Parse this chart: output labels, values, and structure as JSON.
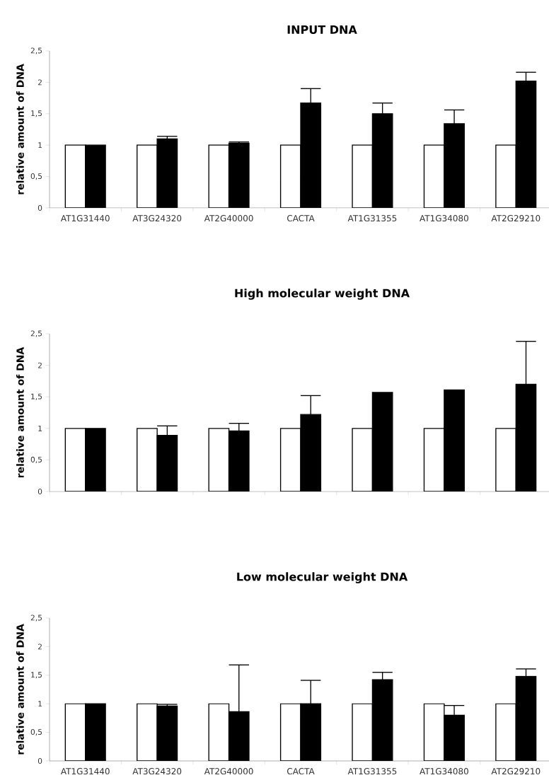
{
  "chart_data": [
    {
      "type": "bar",
      "title": "INPUT DNA",
      "ylabel": "relative amount of DNA",
      "categories": [
        "AT1G31440",
        "AT3G24320",
        "AT2G40000",
        "CACTA",
        "AT1G31355",
        "AT1G34080",
        "AT2G29210"
      ],
      "series": [
        {
          "color": "#ffffff",
          "values": [
            1,
            1,
            1,
            1,
            1,
            1,
            1
          ]
        },
        {
          "color": "#000000",
          "values": [
            1,
            1.1,
            1.03,
            1.67,
            1.5,
            1.34,
            2.02
          ],
          "errors": [
            null,
            [
              1.1,
              1.14
            ],
            [
              1.03,
              1.05
            ],
            [
              1.67,
              1.9
            ],
            [
              1.5,
              1.67
            ],
            [
              1.34,
              1.56
            ],
            [
              2.02,
              2.16
            ]
          ]
        }
      ],
      "ylim": [
        0,
        2.5
      ],
      "yticks": [
        0,
        {
          "value": 0.5,
          "label": "0,5"
        },
        1,
        {
          "value": 1.5,
          "label": "1,5"
        },
        2,
        {
          "value": 2.5,
          "label": "2,5"
        }
      ]
    },
    {
      "type": "bar",
      "title": "High molecular weight DNA",
      "ylabel": "relative amount of DNA",
      "categories": [
        null,
        null,
        null,
        null,
        null,
        null,
        null
      ],
      "series": [
        {
          "color": "#ffffff",
          "values": [
            1,
            1,
            1,
            1,
            1,
            1,
            1
          ]
        },
        {
          "color": "#000000",
          "values": [
            1,
            0.89,
            0.96,
            1.22,
            1.57,
            1.61,
            1.7
          ],
          "errors": [
            null,
            [
              0.89,
              1.04
            ],
            [
              0.96,
              1.08
            ],
            [
              1.22,
              1.52
            ],
            null,
            null,
            [
              1.7,
              2.38
            ]
          ]
        }
      ],
      "ylim": [
        0,
        2.5
      ],
      "yticks": [
        0,
        {
          "value": 0.5,
          "label": "0,5"
        },
        1,
        {
          "value": 1.5,
          "label": "1,5"
        },
        2,
        {
          "value": 2.5,
          "label": "2,5"
        }
      ],
      "tick_labels": "y"
    },
    {
      "type": "bar",
      "title": "Low molecular weight DNA",
      "ylabel": "relative amount of DNA",
      "categories": [
        "AT1G31440",
        "AT3G24320",
        "AT2G40000",
        "CACTA",
        "AT1G31355",
        "AT1G34080",
        "AT2G29210"
      ],
      "series": [
        {
          "color": "#ffffff",
          "values": [
            1,
            1,
            1,
            1,
            1,
            1,
            1
          ]
        },
        {
          "color": "#000000",
          "values": [
            1,
            0.96,
            0.86,
            1.0,
            1.42,
            0.8,
            1.48
          ],
          "errors": [
            null,
            [
              0.96,
              0.99
            ],
            [
              0.86,
              1.68
            ],
            [
              1.0,
              1.41
            ],
            [
              1.42,
              1.55
            ],
            [
              0.8,
              0.97
            ],
            [
              1.48,
              1.61
            ]
          ]
        }
      ],
      "ylim": [
        0,
        2.5
      ],
      "yticks": [
        0,
        {
          "value": 0.5,
          "label": "0,5"
        },
        1,
        {
          "value": 1.5,
          "label": "1,5"
        },
        2,
        {
          "value": 2.5,
          "label": "2,5"
        }
      ]
    }
  ]
}
